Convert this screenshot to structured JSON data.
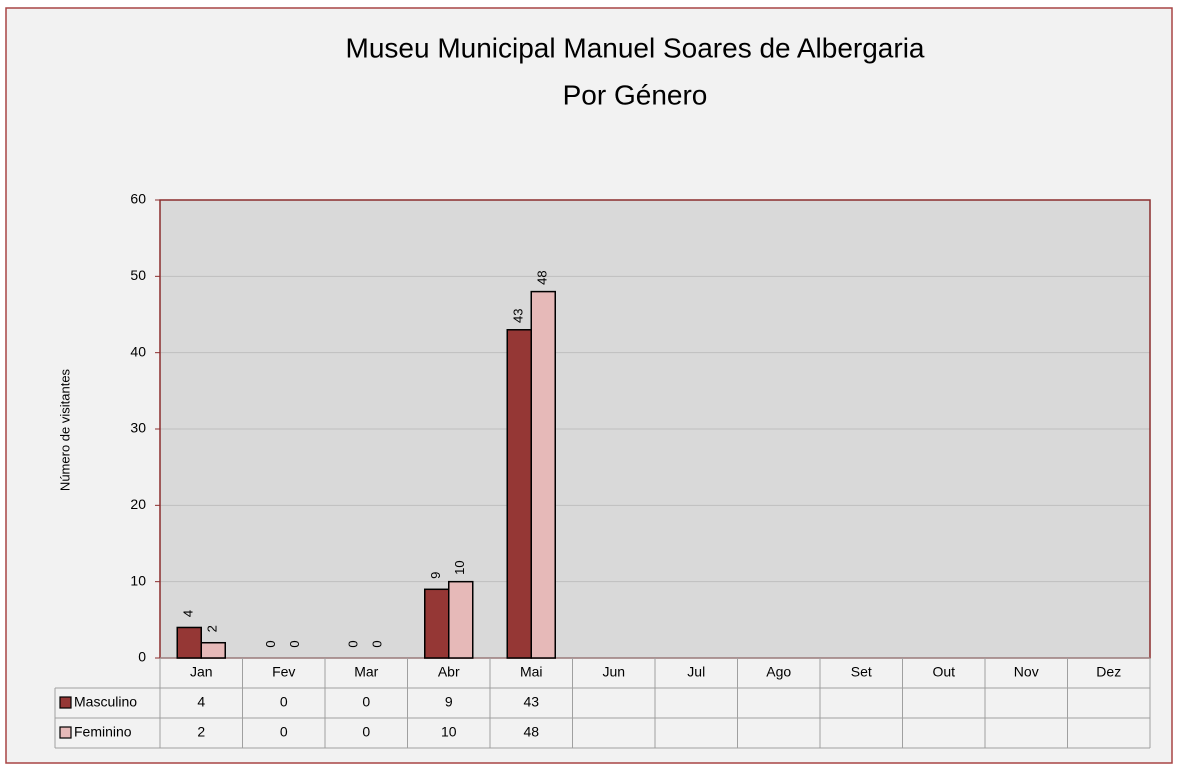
{
  "chart_data": {
    "type": "bar",
    "title": "Museu Municipal Manuel Soares de Albergaria",
    "subtitle": "Por Género",
    "y_label": "Número de visitantes",
    "categories": [
      "Jan",
      "Fev",
      "Mar",
      "Abr",
      "Mai",
      "Jun",
      "Jul",
      "Ago",
      "Set",
      "Out",
      "Nov",
      "Dez"
    ],
    "series": [
      {
        "name": "Masculino",
        "color": "#953735",
        "values": [
          4,
          0,
          0,
          9,
          43,
          null,
          null,
          null,
          null,
          null,
          null,
          null
        ]
      },
      {
        "name": "Feminino",
        "color": "#e6b9b8",
        "values": [
          2,
          0,
          0,
          10,
          48,
          null,
          null,
          null,
          null,
          null,
          null,
          null
        ]
      }
    ],
    "ylim": [
      0,
      60
    ],
    "yticks": [
      0,
      10,
      20,
      30,
      40,
      50,
      60
    ],
    "grid": true
  }
}
